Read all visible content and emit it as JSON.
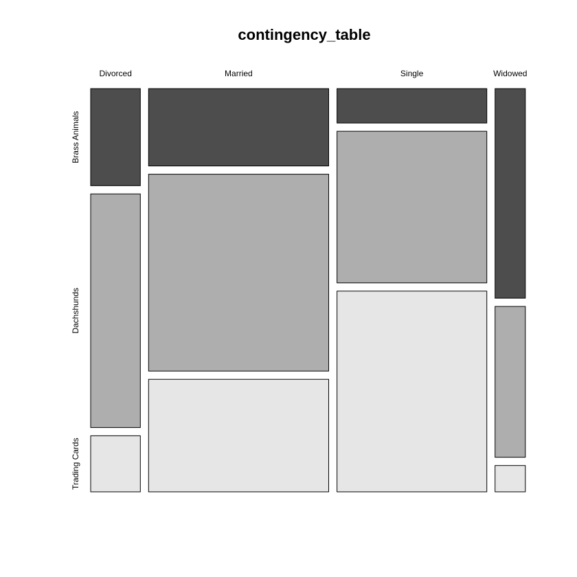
{
  "chart_data": {
    "type": "mosaic",
    "title": "contingency_table",
    "columns": [
      "Divorced",
      "Married",
      "Single",
      "Widowed"
    ],
    "rows": [
      "Brass Animals",
      "Dachshunds",
      "Trading Cards"
    ],
    "column_proportions": [
      0.123,
      0.446,
      0.371,
      0.075
    ],
    "row_proportions_within_column": [
      [
        0.251,
        0.604,
        0.145
      ],
      [
        0.2,
        0.509,
        0.291
      ],
      [
        0.089,
        0.392,
        0.519
      ],
      [
        0.542,
        0.39,
        0.068
      ]
    ],
    "colors": [
      "#4d4d4d",
      "#aeaeae",
      "#e6e6e6"
    ]
  }
}
